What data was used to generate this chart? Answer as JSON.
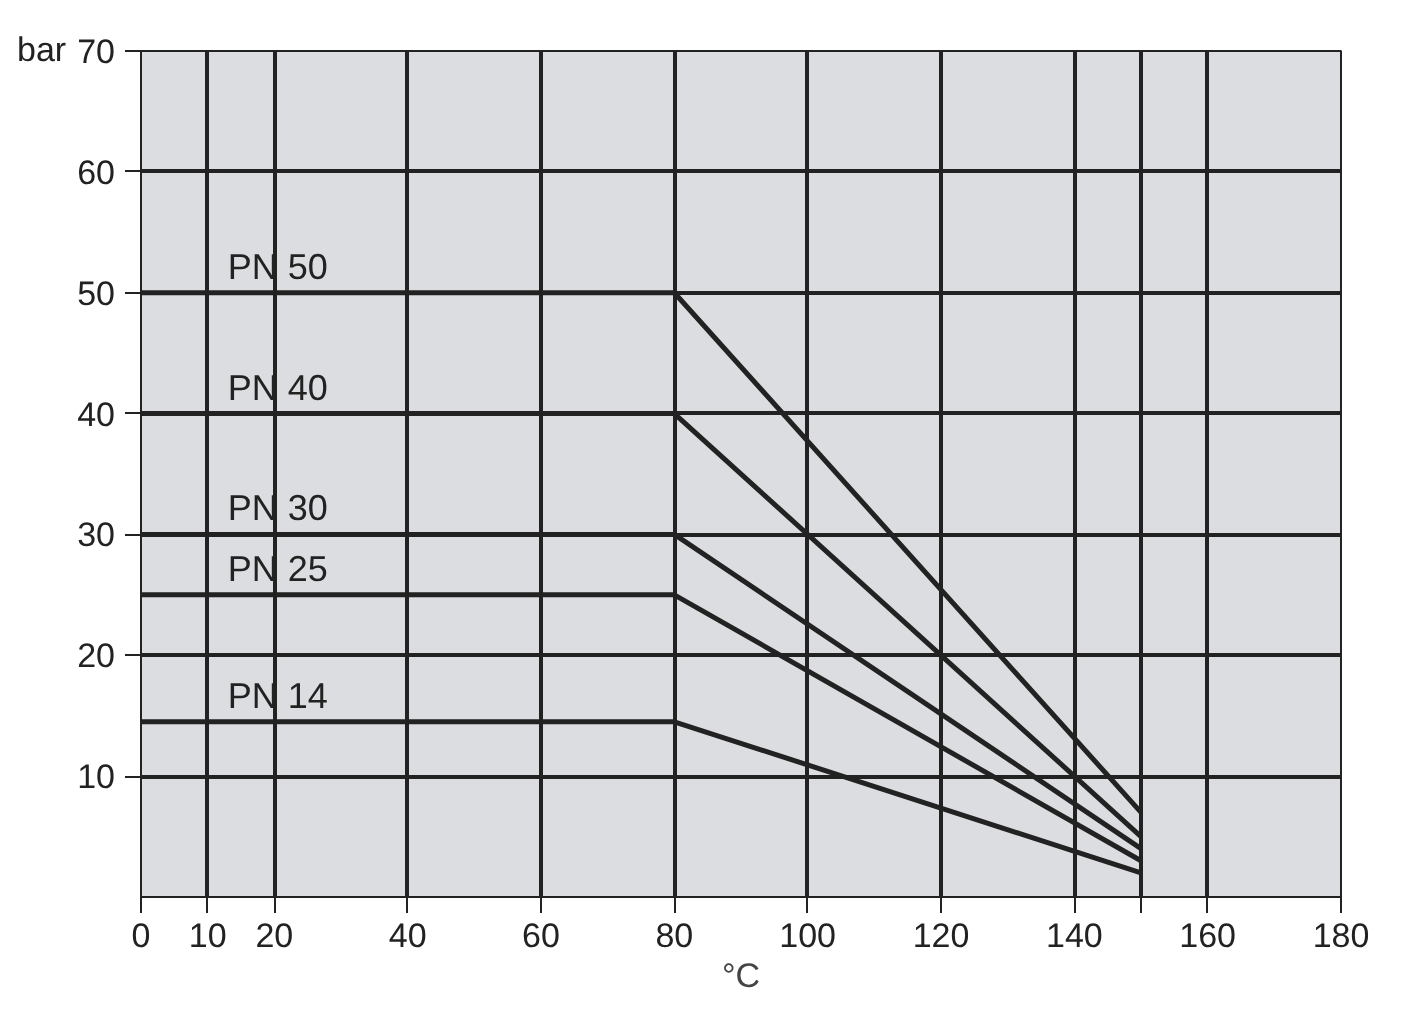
{
  "chart_data": {
    "type": "line",
    "xlabel": "°C",
    "ylabel": "bar",
    "x": [
      0,
      80,
      150
    ],
    "series": [
      {
        "name": "PN 50",
        "color": "#222222",
        "values": [
          50,
          50,
          7
        ]
      },
      {
        "name": "PN 40",
        "color": "#222222",
        "values": [
          40,
          40,
          5
        ]
      },
      {
        "name": "PN 30",
        "color": "#222222",
        "values": [
          30,
          30,
          4
        ]
      },
      {
        "name": "PN 25",
        "color": "#222222",
        "values": [
          25,
          25,
          3
        ]
      },
      {
        "name": "PN 14",
        "color": "#222222",
        "values": [
          14.5,
          14.5,
          2
        ]
      }
    ],
    "xlim": [
      0,
      180
    ],
    "ylim": [
      0,
      70
    ],
    "xticks": [
      0,
      10,
      20,
      40,
      60,
      80,
      100,
      120,
      140,
      {
        "value": 150,
        "label": null
      },
      160,
      180
    ],
    "yticks": [
      10,
      20,
      30,
      40,
      50,
      60,
      70
    ],
    "grid": true,
    "marker": "none",
    "line_style": "solid"
  }
}
